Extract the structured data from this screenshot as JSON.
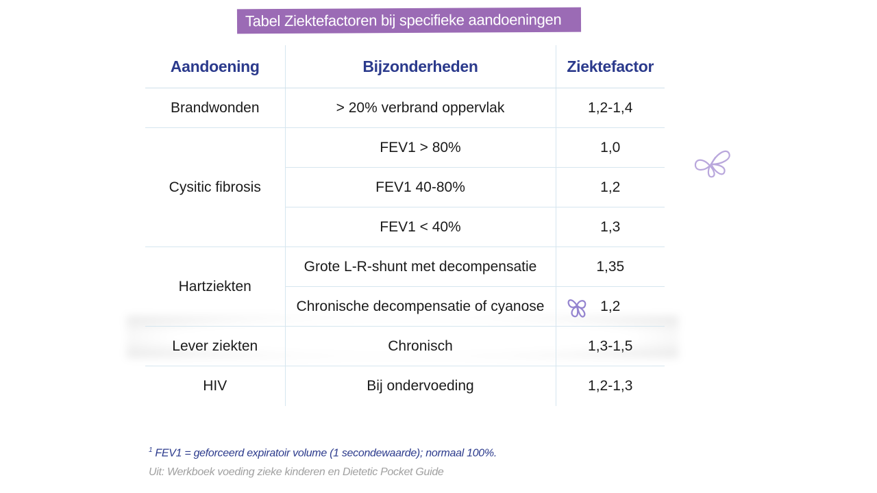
{
  "title": "Tabel Ziektefactoren bij specifieke aandoeningen",
  "headers": {
    "condition": "Aandoening",
    "details": "Bijzonderheden",
    "factor": "Ziektefactor"
  },
  "rows": [
    {
      "condition": "Brandwonden",
      "details": "> 20% verbrand oppervlak",
      "factor": "1,2-1,4"
    },
    {
      "condition": "Cysitic fibrosis",
      "details": "FEV1 > 80%",
      "factor": "1,0"
    },
    {
      "details": "FEV1 40-80%",
      "factor": "1,2"
    },
    {
      "details": "FEV1 < 40%",
      "factor": "1,3"
    },
    {
      "condition": "Hartziekten",
      "details": "Grote L-R-shunt met decompensatie",
      "factor": "1,35"
    },
    {
      "details": "Chronische decompensatie of cyanose",
      "factor": "1,2"
    },
    {
      "condition": "Lever ziekten",
      "details": "Chronisch",
      "factor": "1,3-1,5"
    },
    {
      "condition": "HIV",
      "details": "Bij ondervoeding",
      "factor": "1,2-1,3"
    }
  ],
  "footnote": {
    "marker": "1",
    "text": "FEV1 = geforceerd expiratoir volume (1 secondewaarde); normaal 100%."
  },
  "source": "Uit: Werkboek voeding zieke kinderen en Dietetic Pocket Guide",
  "colors": {
    "title_bg": "#9b6bb5",
    "header_text": "#2b3a8c",
    "grid": "#d6e6ef",
    "butterfly": "#b9a7dc"
  },
  "icons": [
    "butterfly-icon",
    "butterfly-icon"
  ]
}
